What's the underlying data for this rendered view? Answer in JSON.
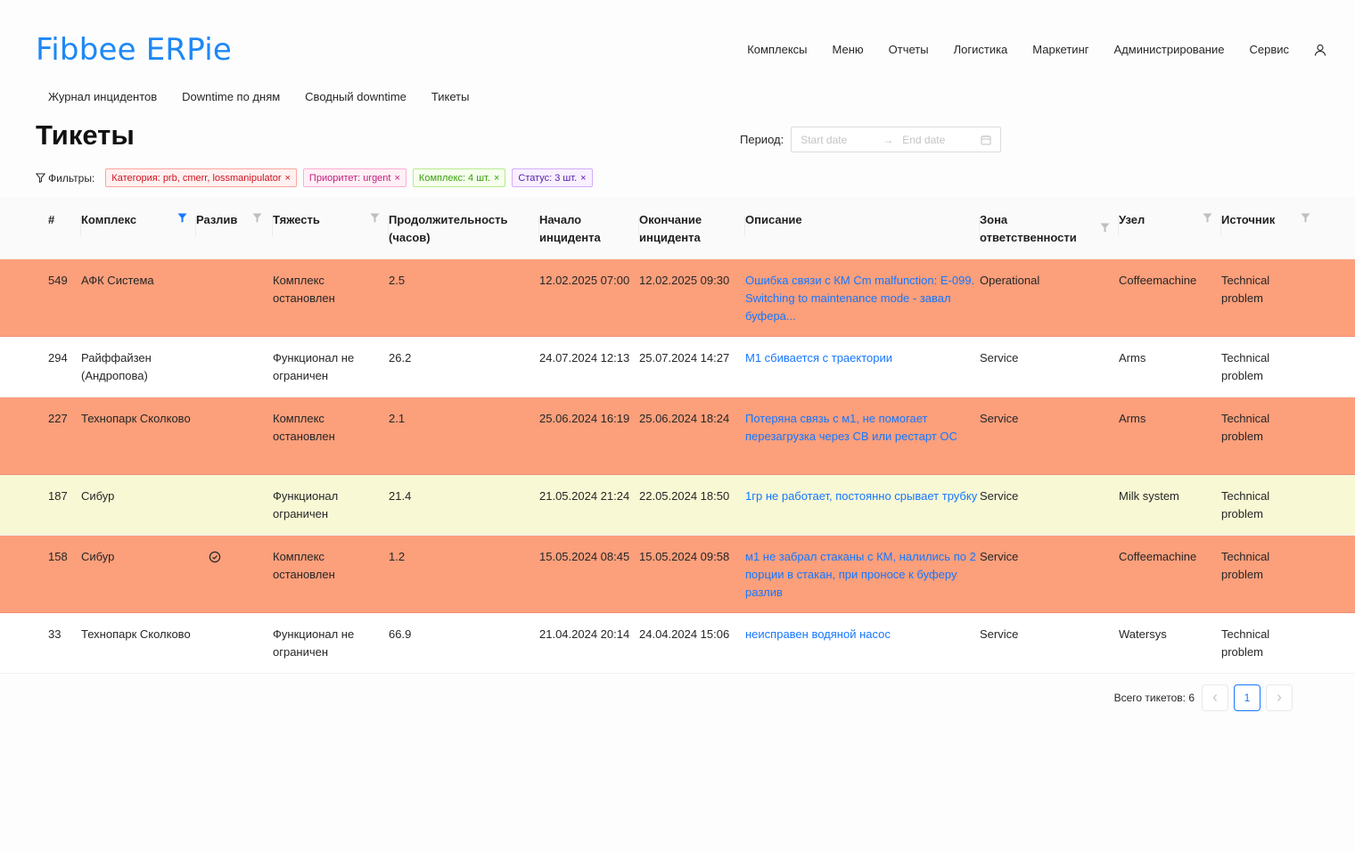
{
  "app": {
    "logo": "Fibbee ERPie"
  },
  "topnav": {
    "items": [
      "Комплексы",
      "Меню",
      "Отчеты",
      "Логистика",
      "Маркетинг",
      "Администрирование",
      "Сервис"
    ]
  },
  "subnav": {
    "items": [
      "Журнал инцидентов",
      "Downtime по дням",
      "Сводный downtime",
      "Тикеты"
    ]
  },
  "page": {
    "title": "Тикеты"
  },
  "period": {
    "label": "Период:",
    "start_placeholder": "Start date",
    "end_placeholder": "End date"
  },
  "filters": {
    "label": "Фильтры:",
    "tags": [
      {
        "text": "Категория: prb, cmerr, lossmanipulator",
        "color": "red"
      },
      {
        "text": "Приоритет: urgent",
        "color": "magenta"
      },
      {
        "text": "Комплекс: 4 шт.",
        "color": "green"
      },
      {
        "text": "Статус: 3 шт.",
        "color": "purple"
      }
    ]
  },
  "table": {
    "columns": {
      "id": "#",
      "complex": "Комплекс",
      "spill": "Разлив",
      "severity": "Тяжесть",
      "duration": "Продолжительность (часов)",
      "start": "Начало инцидента",
      "end": "Окончание инцидента",
      "description": "Описание",
      "zone": "Зона ответственности",
      "node": "Узел",
      "source": "Источник"
    },
    "rows": [
      {
        "id": "549",
        "complex": "АФК Система",
        "spill": false,
        "severity": "Комплекс остановлен",
        "duration": "2.5",
        "start": "12.02.2025 07:00",
        "end": "12.02.2025 09:30",
        "description": "Ошибка связи с КМ Cm malfunction: E-099. Switching to maintenance mode - завал буфера...",
        "zone": "Operational",
        "node": "Coffeemachine",
        "source": "Technical problem",
        "color": "orange"
      },
      {
        "id": "294",
        "complex": "Райффайзен (Андропова)",
        "spill": false,
        "severity": "Функционал не ограничен",
        "duration": "26.2",
        "start": "24.07.2024 12:13",
        "end": "25.07.2024 14:27",
        "description": "М1 сбивается с траектории",
        "zone": "Service",
        "node": "Arms",
        "source": "Technical problem",
        "color": "white"
      },
      {
        "id": "227",
        "complex": "Технопарк Сколково",
        "spill": false,
        "severity": "Комплекс остановлен",
        "duration": "2.1",
        "start": "25.06.2024 16:19",
        "end": "25.06.2024 18:24",
        "description": "Потеряна связь с м1, не помогает перезагрузка через СВ или рестарт ОС",
        "zone": "Service",
        "node": "Arms",
        "source": "Technical problem",
        "color": "orange"
      },
      {
        "id": "187",
        "complex": "Сибур",
        "spill": false,
        "severity": "Функционал ограничен",
        "duration": "21.4",
        "start": "21.05.2024 21:24",
        "end": "22.05.2024 18:50",
        "description": "1гр не работает, постоянно срывает трубку",
        "zone": "Service",
        "node": "Milk system",
        "source": "Technical problem",
        "color": "yellow"
      },
      {
        "id": "158",
        "complex": "Сибур",
        "spill": true,
        "severity": "Комплекс остановлен",
        "duration": "1.2",
        "start": "15.05.2024 08:45",
        "end": "15.05.2024 09:58",
        "description": "м1 не забрал стаканы с КМ, налились по 2 порции в стакан, при проносе к буферу разлив",
        "zone": "Service",
        "node": "Coffeemachine",
        "source": "Technical problem",
        "color": "orange"
      },
      {
        "id": "33",
        "complex": "Технопарк Сколково",
        "spill": false,
        "severity": "Функционал не ограничен",
        "duration": "66.9",
        "start": "21.04.2024 20:14",
        "end": "24.04.2024 15:06",
        "description": "неисправен водяной насос",
        "zone": "Service",
        "node": "Watersys",
        "source": "Technical problem",
        "color": "white"
      }
    ]
  },
  "pagination": {
    "total_label": "Всего тикетов: 6",
    "current_page": "1"
  },
  "colors": {
    "accent": "#1677ff",
    "row_orange": "#fc9f7b",
    "row_yellow": "#f8f8d5",
    "logo": "#1e88f5"
  }
}
